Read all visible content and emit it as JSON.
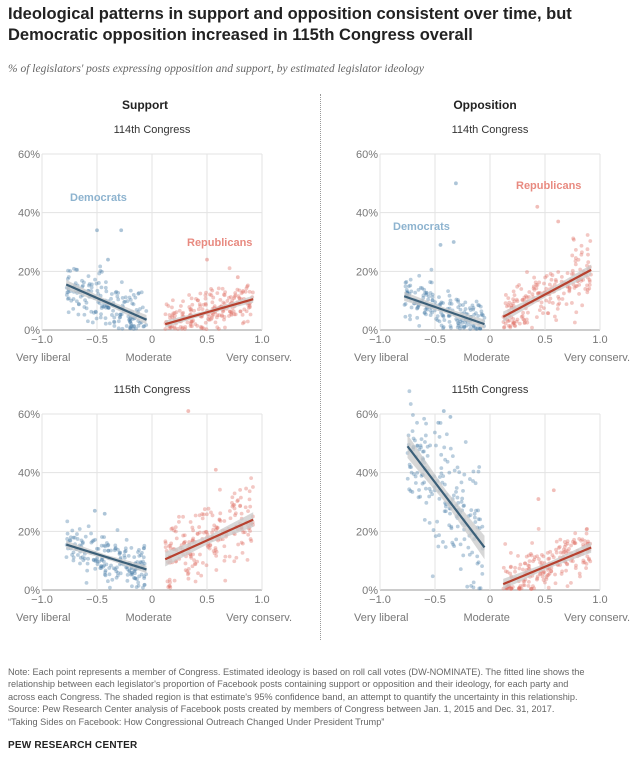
{
  "title": "Ideological patterns in support and opposition consistent over time, but Democratic opposition increased in 115th Congress overall",
  "subtitle": "% of legislators' posts expressing opposition and support, by estimated legislator ideology",
  "columns": {
    "support": "Support",
    "opposition": "Opposition"
  },
  "colors": {
    "democrats": "#4a7fa8",
    "republicans": "#e06f63",
    "dem_line": "#3b5f78",
    "rep_line": "#b7412f",
    "band": "#c9c9c9"
  },
  "x_axis": {
    "ticks": [
      "−1.0",
      "−0.5",
      "0",
      "0.5",
      "1.0"
    ],
    "labels": [
      "Very liberal",
      "Moderate",
      "Very conserv."
    ]
  },
  "y_axis": {
    "ticks": [
      "0%",
      "20%",
      "40%",
      "60%"
    ]
  },
  "chart_data": [
    {
      "type": "scatter",
      "title": "114th Congress",
      "column": "Support",
      "x_range": [
        -1.0,
        1.0
      ],
      "y_range": [
        0,
        60
      ],
      "annotations": [
        {
          "text": "Democrats",
          "party": "democrats"
        },
        {
          "text": "Republicans",
          "party": "republicans"
        }
      ],
      "series": [
        {
          "name": "Democrats",
          "x_range": [
            -0.78,
            -0.05
          ],
          "y_mean": 9,
          "y_spread": 6,
          "fit": {
            "x": [
              -0.78,
              -0.05
            ],
            "y": [
              15.5,
              3.5
            ]
          },
          "ci_halfwidth": 1.6,
          "outliers": [
            [
              -0.5,
              34
            ],
            [
              -0.28,
              34
            ],
            [
              -0.4,
              24
            ]
          ]
        },
        {
          "name": "Republicans",
          "x_range": [
            0.12,
            0.92
          ],
          "y_mean": 5.5,
          "y_spread": 4.5,
          "fit": {
            "x": [
              0.12,
              0.92
            ],
            "y": [
              2,
              10.5
            ]
          },
          "ci_halfwidth": 1.2,
          "outliers": [
            [
              0.5,
              24
            ],
            [
              0.78,
              18
            ]
          ]
        }
      ]
    },
    {
      "type": "scatter",
      "title": "114th Congress",
      "column": "Opposition",
      "x_range": [
        -1.0,
        1.0
      ],
      "y_range": [
        0,
        60
      ],
      "annotations": [
        {
          "text": "Democrats",
          "party": "democrats"
        },
        {
          "text": "Republicans",
          "party": "republicans"
        }
      ],
      "series": [
        {
          "name": "Democrats",
          "x_range": [
            -0.78,
            -0.05
          ],
          "y_mean": 6.5,
          "y_spread": 5,
          "fit": {
            "x": [
              -0.78,
              -0.05
            ],
            "y": [
              11.5,
              2
            ]
          },
          "ci_halfwidth": 1.6,
          "outliers": [
            [
              -0.31,
              50
            ],
            [
              -0.33,
              30
            ],
            [
              -0.45,
              29
            ]
          ]
        },
        {
          "name": "Republicans",
          "x_range": [
            0.12,
            0.92
          ],
          "y_mean": 12,
          "y_spread": 7,
          "fit": {
            "x": [
              0.12,
              0.92
            ],
            "y": [
              4.5,
              20.5
            ]
          },
          "ci_halfwidth": 1.8,
          "outliers": [
            [
              0.43,
              42
            ],
            [
              0.62,
              37
            ]
          ]
        }
      ]
    },
    {
      "type": "scatter",
      "title": "115th Congress",
      "column": "Support",
      "x_range": [
        -1.0,
        1.0
      ],
      "y_range": [
        0,
        60
      ],
      "annotations": [],
      "series": [
        {
          "name": "Democrats",
          "x_range": [
            -0.78,
            -0.05
          ],
          "y_mean": 11,
          "y_spread": 5,
          "fit": {
            "x": [
              -0.78,
              -0.05
            ],
            "y": [
              15.5,
              7
            ]
          },
          "ci_halfwidth": 1.3,
          "outliers": [
            [
              -0.52,
              27
            ],
            [
              -0.43,
              26
            ]
          ]
        },
        {
          "name": "Republicans",
          "x_range": [
            0.12,
            0.92
          ],
          "y_mean": 17,
          "y_spread": 9,
          "fit": {
            "x": [
              0.12,
              0.92
            ],
            "y": [
              10.5,
              24
            ]
          },
          "ci_halfwidth": 2.5,
          "outliers": [
            [
              0.33,
              61
            ],
            [
              0.58,
              41
            ]
          ]
        }
      ]
    },
    {
      "type": "scatter",
      "title": "115th Congress",
      "column": "Opposition",
      "x_range": [
        -1.0,
        1.0
      ],
      "y_range": [
        0,
        60
      ],
      "annotations": [],
      "series": [
        {
          "name": "Democrats",
          "x_range": [
            -0.75,
            -0.05
          ],
          "y_mean": 30,
          "y_spread": 14,
          "fit": {
            "x": [
              -0.75,
              -0.05
            ],
            "y": [
              49,
              14.5
            ]
          },
          "ci_halfwidth": 4,
          "outliers": [
            [
              -0.42,
              61
            ],
            [
              -0.36,
              59
            ],
            [
              -0.47,
              57
            ]
          ]
        },
        {
          "name": "Republicans",
          "x_range": [
            0.12,
            0.92
          ],
          "y_mean": 7,
          "y_spread": 5.5,
          "fit": {
            "x": [
              0.12,
              0.92
            ],
            "y": [
              2,
              14.5
            ]
          },
          "ci_halfwidth": 1.8,
          "outliers": [
            [
              0.58,
              34
            ],
            [
              0.44,
              31
            ]
          ]
        }
      ]
    }
  ],
  "note": [
    "Note: Each point represents a member of Congress. Estimated ideology is based on roll call votes (DW-NOMINATE). The fitted line shows the",
    "relationship between each legislator's proportion of Facebook posts containing support or opposition and their ideology, for each party and",
    "across each Congress. The shaded region is that estimate's 95% confidence band, an attempt to quantify the uncertainty in this relationship.",
    "Source: Pew Research Center analysis of Facebook posts created by members of Congress between Jan. 1, 2015 and Dec. 31, 2017.",
    "“Taking Sides on Facebook: How Congressional Outreach Changed Under President Trump”"
  ],
  "brand": "PEW RESEARCH CENTER"
}
